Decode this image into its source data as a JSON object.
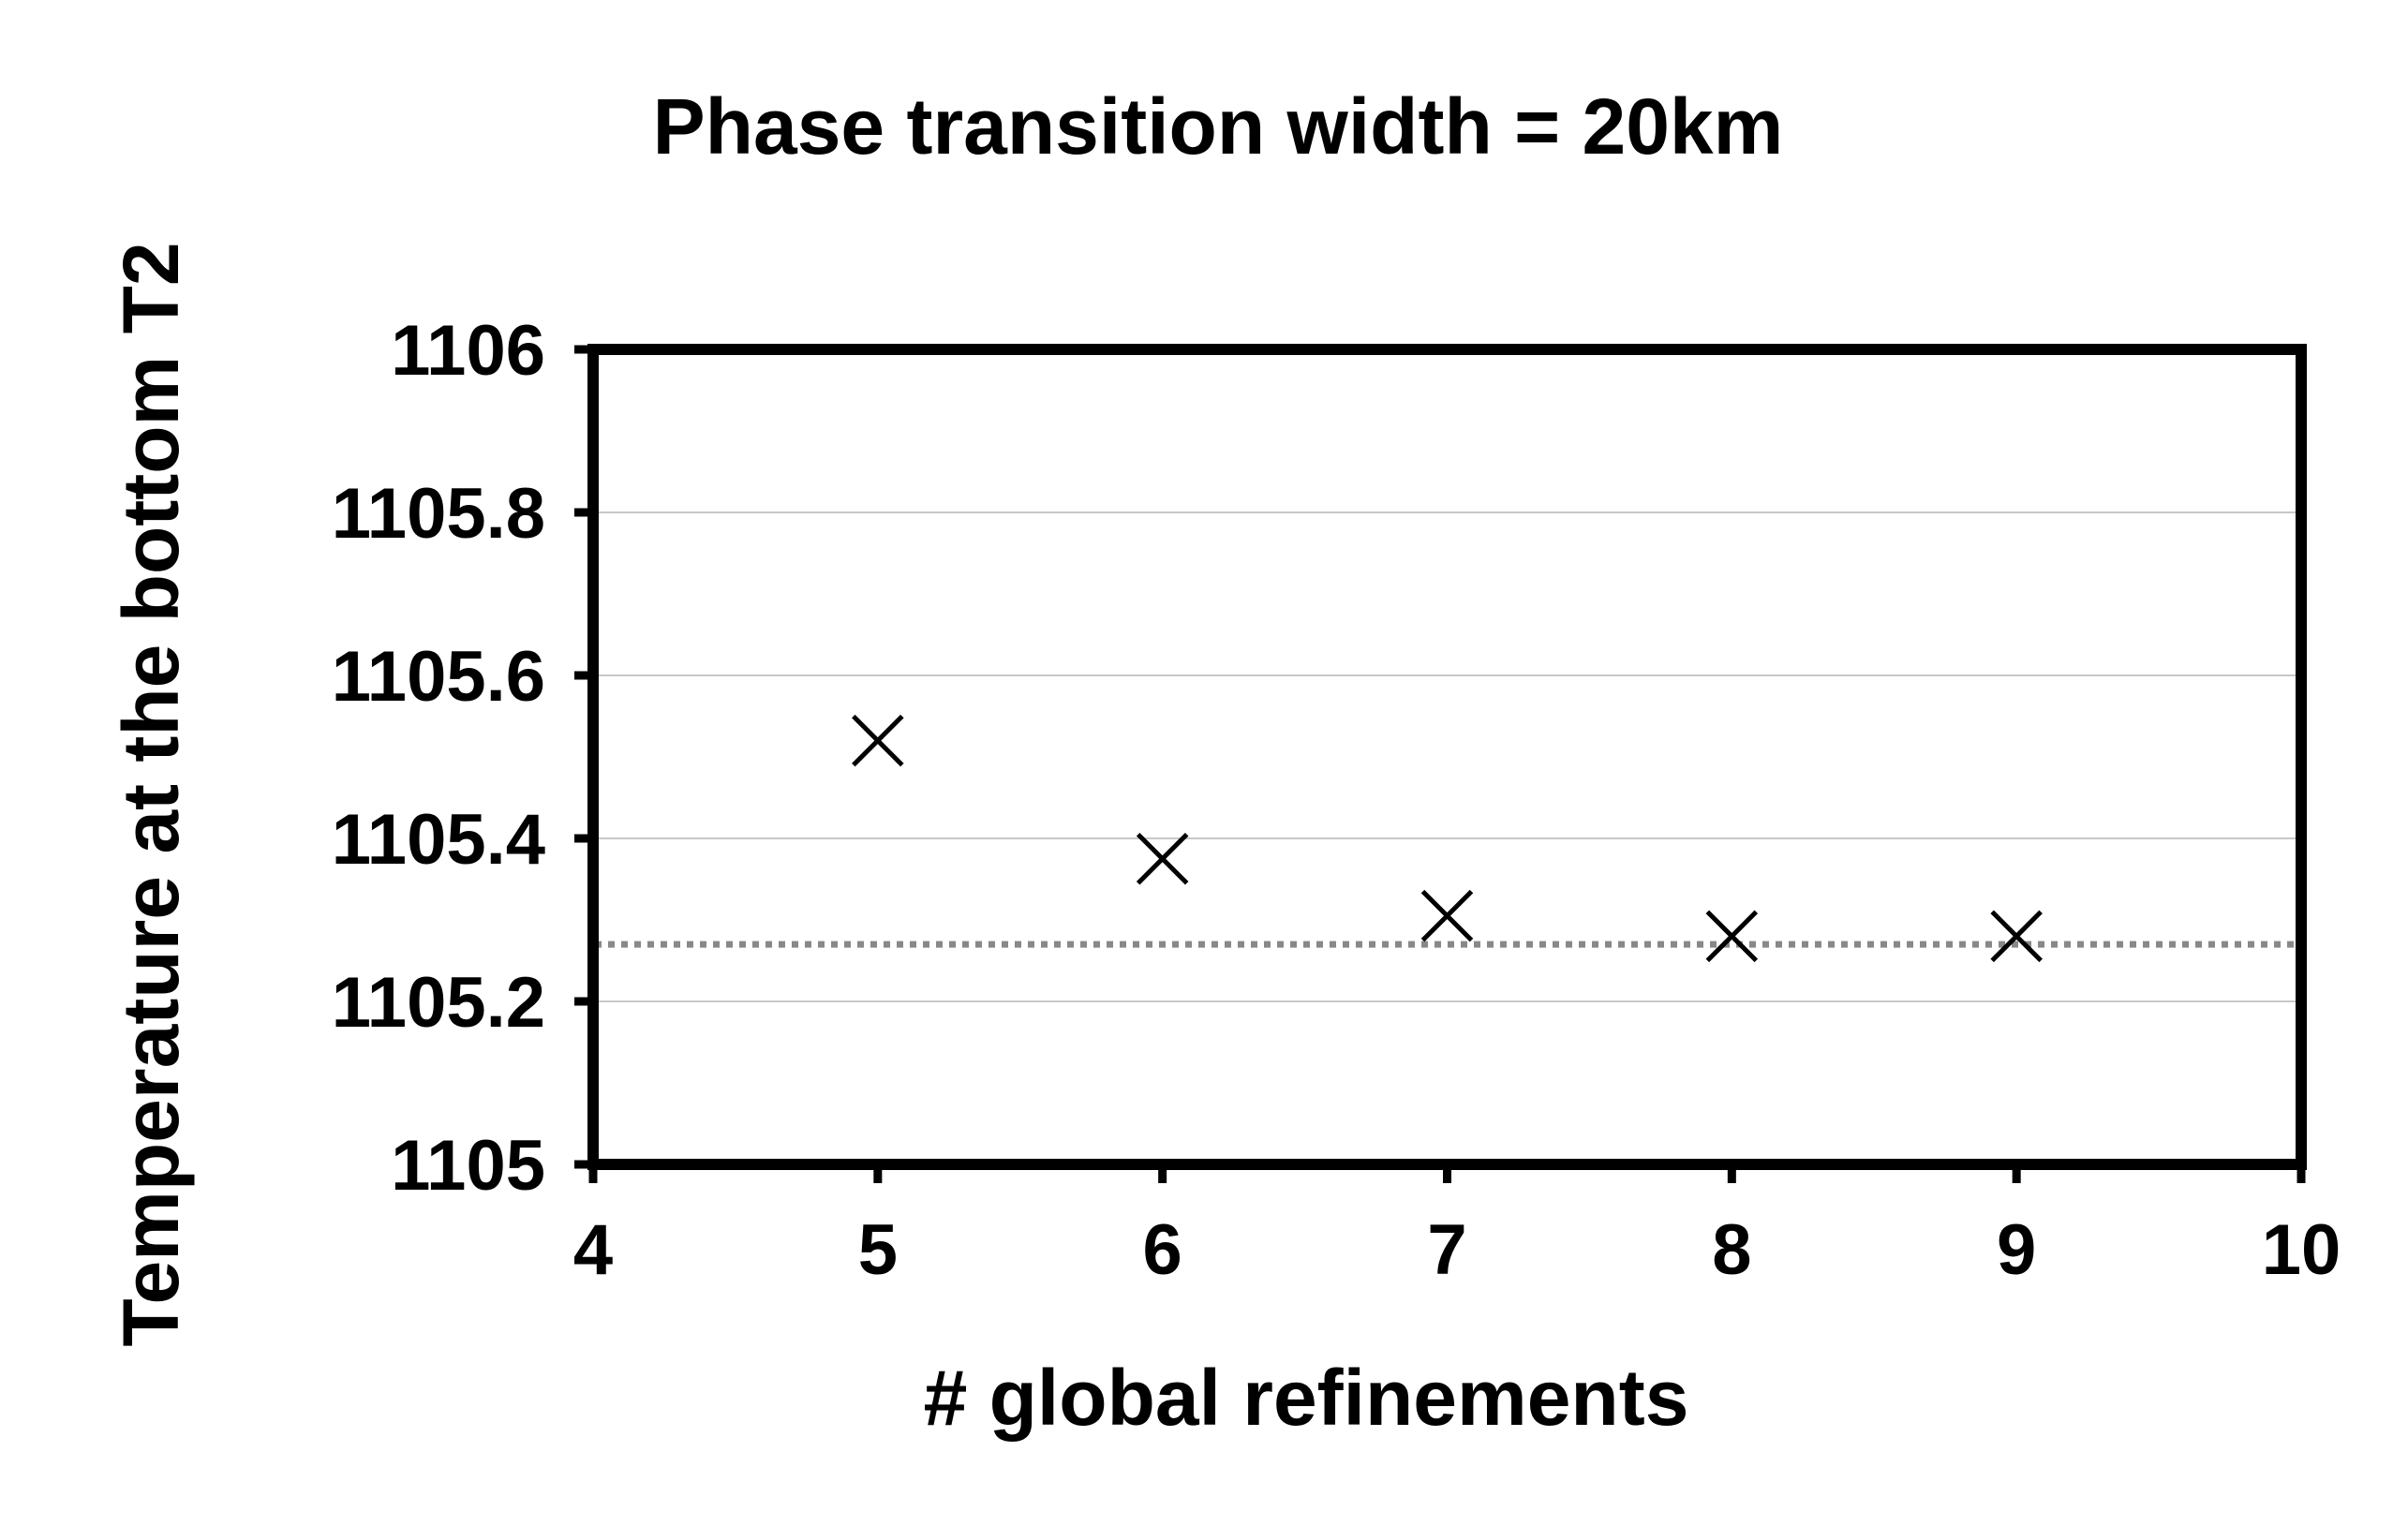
{
  "chart_data": {
    "type": "scatter",
    "title": "Phase transition width = 20km",
    "xlabel": "# global refinements",
    "ylabel": "Temperature at the bottom T2",
    "xlim": [
      4,
      10
    ],
    "ylim": [
      1105,
      1106
    ],
    "xticks": [
      4,
      5,
      6,
      7,
      8,
      9,
      10
    ],
    "xtick_labels": [
      "4",
      "5",
      "6",
      "7",
      "8",
      "9",
      "10"
    ],
    "yticks": [
      1105,
      1105.2,
      1105.4,
      1105.6,
      1105.8,
      1106
    ],
    "ytick_labels": [
      "1105",
      "1105.2",
      "1105.4",
      "1105.6",
      "1105.8",
      "1106"
    ],
    "grid": {
      "horizontal": true,
      "vertical": false
    },
    "marker": "x",
    "series": [
      {
        "x": [
          5,
          6,
          7,
          8,
          9
        ],
        "y": [
          1105.52,
          1105.375,
          1105.305,
          1105.28,
          1105.28
        ]
      }
    ],
    "reference_lines": [
      {
        "orientation": "horizontal",
        "y": 1105.27,
        "style": "dotted",
        "color": "#888888"
      }
    ],
    "colors": {
      "marker": "#000000",
      "frame": "#000000",
      "grid": "#c8c8c8",
      "reference": "#888888"
    }
  }
}
